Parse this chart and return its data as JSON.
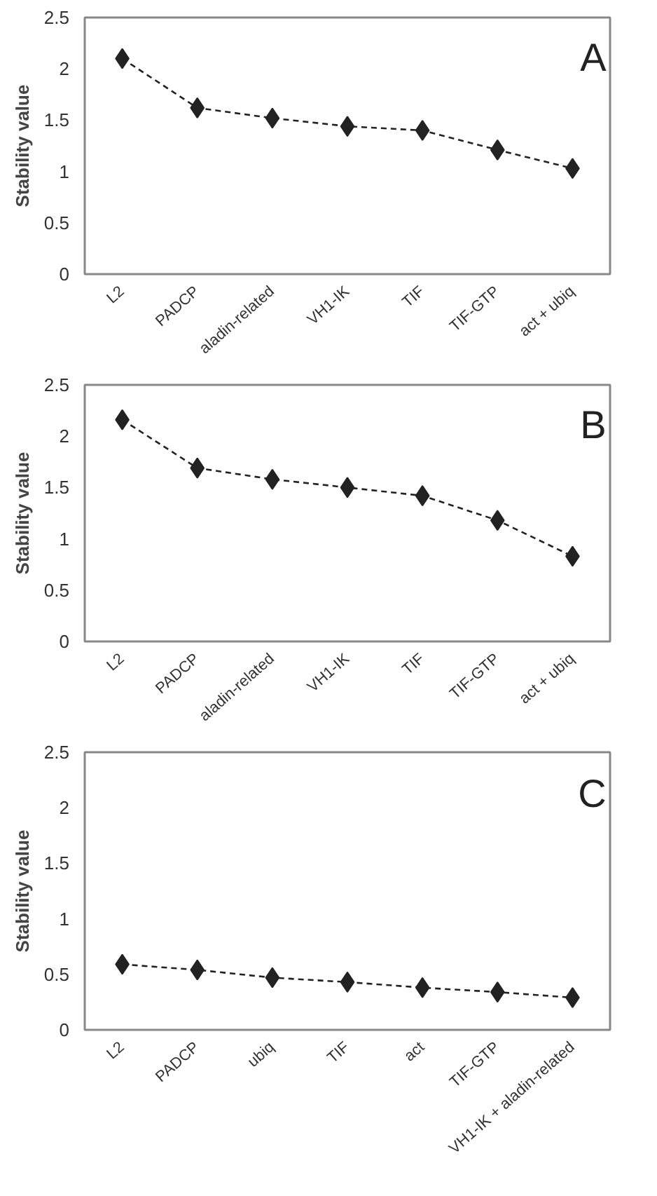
{
  "chart_data": [
    {
      "type": "line",
      "annotations": [
        "A"
      ],
      "ylabel": "Stability value",
      "categories": [
        "L2",
        "PADCP",
        "aladin-related",
        "VH1-IK",
        "TIF",
        "TIF-GTP",
        "act + ubiq"
      ],
      "series": [
        {
          "color": "#222222",
          "values": [
            2.1,
            1.62,
            1.52,
            1.44,
            1.4,
            1.21,
            1.03
          ]
        }
      ],
      "ylim": [
        0,
        2.5
      ],
      "yticks": [
        0,
        0.5,
        1,
        1.5,
        2,
        2.5
      ],
      "grid": false,
      "marker": "diamond",
      "line_style": "dashed"
    },
    {
      "type": "line",
      "annotations": [
        "B"
      ],
      "ylabel": "Stability value",
      "categories": [
        "L2",
        "PADCP",
        "aladin-related",
        "VH1-IK",
        "TIF",
        "TIF-GTP",
        "act + ubiq"
      ],
      "series": [
        {
          "color": "#222222",
          "values": [
            2.16,
            1.69,
            1.58,
            1.5,
            1.42,
            1.18,
            0.83
          ]
        }
      ],
      "ylim": [
        0,
        2.5
      ],
      "yticks": [
        0,
        0.5,
        1,
        1.5,
        2,
        2.5
      ],
      "grid": false,
      "marker": "diamond",
      "line_style": "dashed"
    },
    {
      "type": "line",
      "annotations": [
        "C"
      ],
      "ylabel": "Stability value",
      "categories": [
        "L2",
        "PADCP",
        "ubiq",
        "TIF",
        "act",
        "TIF-GTP",
        "VH1-IK + aladin-related"
      ],
      "series": [
        {
          "color": "#222222",
          "values": [
            0.59,
            0.54,
            0.47,
            0.43,
            0.38,
            0.34,
            0.29
          ]
        }
      ],
      "ylim": [
        0,
        2.5
      ],
      "yticks": [
        0,
        0.5,
        1,
        1.5,
        2,
        2.5
      ],
      "grid": false,
      "marker": "diamond",
      "line_style": "dashed"
    }
  ]
}
